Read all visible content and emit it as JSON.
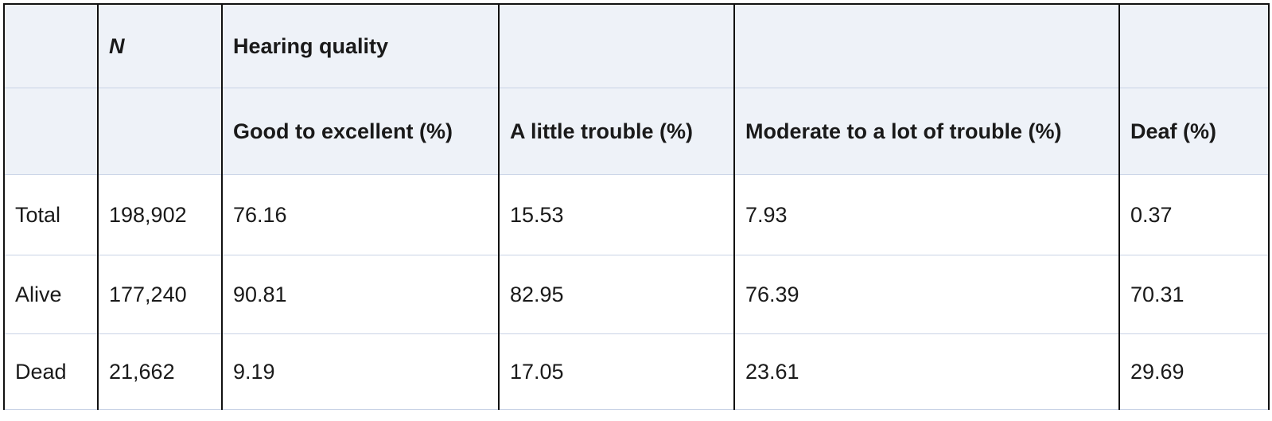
{
  "table": {
    "header_row1": {
      "n_label": "N",
      "group_label": "Hearing quality"
    },
    "header_row2": [
      "Good to excellent (%)",
      "A little trouble (%)",
      "Moderate to a lot of trouble (%)",
      "Deaf (%)"
    ],
    "rows": [
      {
        "label": "Total",
        "n": "198,902",
        "values": [
          "76.16",
          "15.53",
          "7.93",
          "0.37"
        ]
      },
      {
        "label": "Alive",
        "n": "177,240",
        "values": [
          "90.81",
          "82.95",
          "76.39",
          "70.31"
        ]
      },
      {
        "label": "Dead",
        "n": "21,662",
        "values": [
          "9.19",
          "17.05",
          "23.61",
          "29.69"
        ]
      }
    ]
  },
  "colors": {
    "header_bg": "#eef2f8",
    "grid_line": "#c9d3e6",
    "column_border": "#111111"
  }
}
